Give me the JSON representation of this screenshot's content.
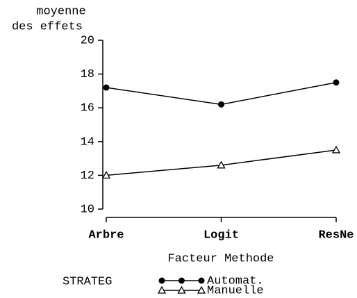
{
  "chart_data": {
    "type": "line",
    "ylabel": [
      "moyenne",
      "des effets"
    ],
    "xlabel": "Facteur Methode",
    "categories": [
      "Arbre",
      "Logit",
      "ResNe"
    ],
    "legend_title": "STRATEG",
    "series": [
      {
        "name": "Automat.",
        "color": "#000000",
        "marker": "circle-filled",
        "values": [
          17.2,
          16.2,
          17.5
        ]
      },
      {
        "name": "Manuelle",
        "color": "#000000",
        "marker": "triangle-open",
        "values": [
          12.0,
          12.6,
          13.5
        ]
      }
    ],
    "ylim": [
      10,
      20
    ],
    "yticks": [
      10,
      12,
      14,
      16,
      18,
      20
    ]
  }
}
